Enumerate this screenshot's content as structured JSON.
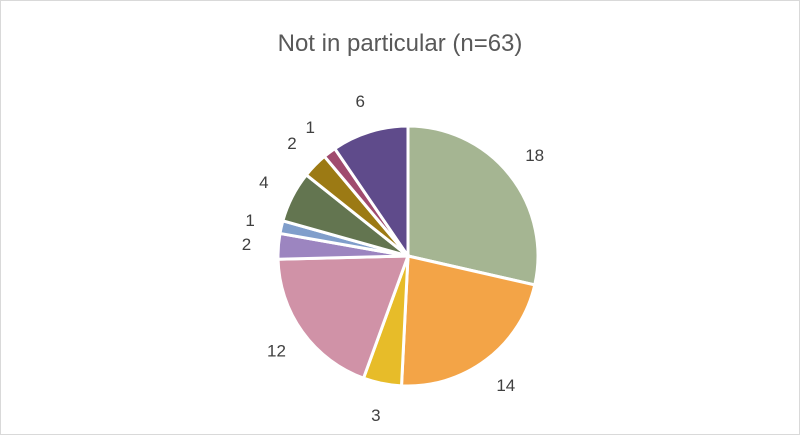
{
  "chart_data": {
    "type": "pie",
    "title": "Not in particular (n=63)",
    "slices": [
      {
        "value": 18,
        "label": "18",
        "color": "#a5b592"
      },
      {
        "value": 14,
        "label": "14",
        "color": "#f3a447"
      },
      {
        "value": 3,
        "label": "3",
        "color": "#e7bc29"
      },
      {
        "value": 12,
        "label": "12",
        "color": "#d092a7"
      },
      {
        "value": 2,
        "label": "2",
        "color": "#9c85c0"
      },
      {
        "value": 1,
        "label": "1",
        "color": "#809ecb"
      },
      {
        "value": 4,
        "label": "4",
        "color": "#637550"
      },
      {
        "value": 2,
        "label": "2",
        "color": "#9c7a14"
      },
      {
        "value": 1,
        "label": "1",
        "color": "#a04b6e"
      },
      {
        "value": 6,
        "label": "6",
        "color": "#5f4b8b"
      }
    ]
  }
}
